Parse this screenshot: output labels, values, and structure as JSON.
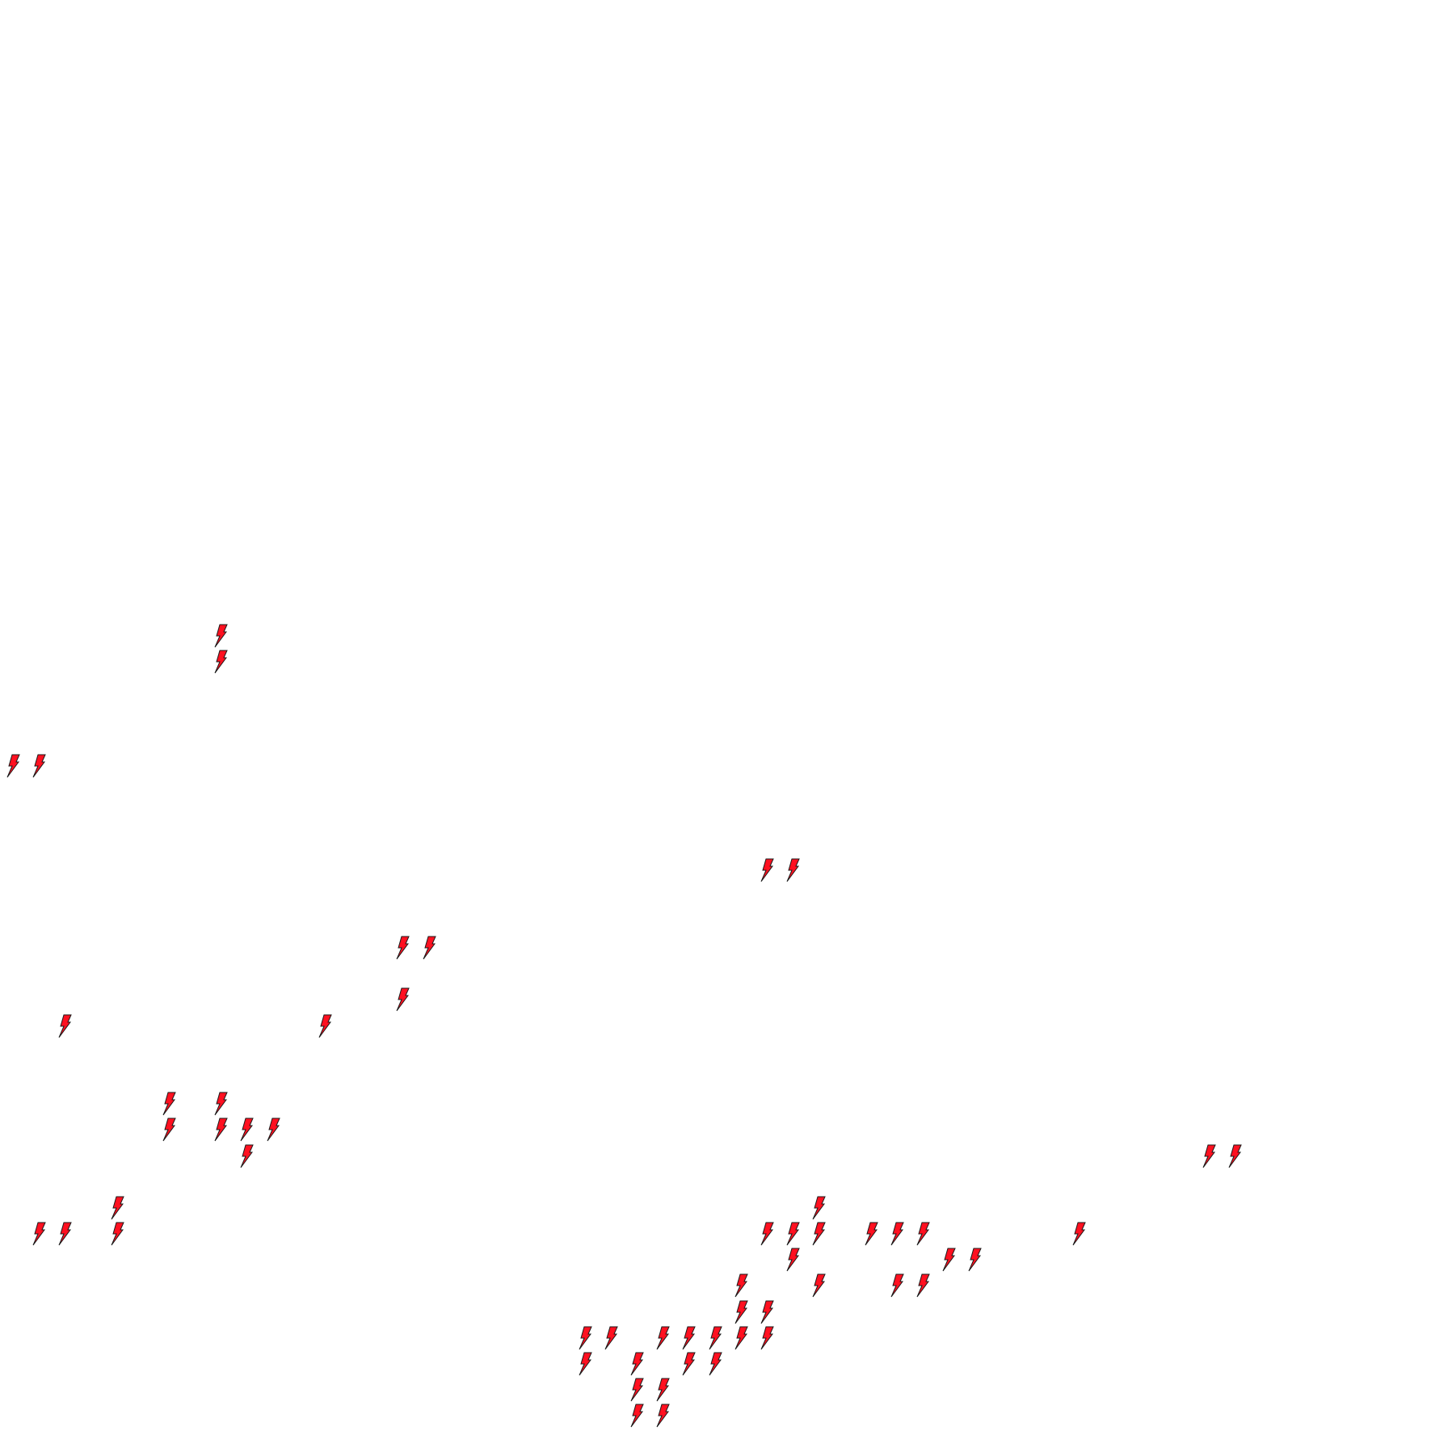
{
  "map": {
    "marker_icon": "lightning-bolt-icon",
    "marker_fill": "#ff1020",
    "marker_stroke": "#1a1a1a"
  }
}
